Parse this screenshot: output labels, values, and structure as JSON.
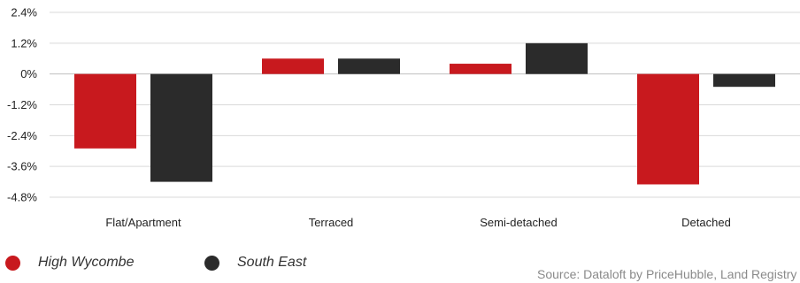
{
  "chart_data": {
    "type": "bar",
    "categories": [
      "Flat/Apartment",
      "Terraced",
      "Semi-detached",
      "Detached"
    ],
    "series": [
      {
        "name": "High Wycombe",
        "color": "#c8191e",
        "values": [
          -2.9,
          0.6,
          0.4,
          -4.3
        ]
      },
      {
        "name": "South East",
        "color": "#2b2b2b",
        "values": [
          -4.2,
          0.6,
          1.2,
          -0.5
        ]
      }
    ],
    "y_ticks": [
      "2.4%",
      "1.2%",
      "0%",
      "-1.2%",
      "-2.4%",
      "-3.6%",
      "-4.8%"
    ],
    "y_tick_values": [
      2.4,
      1.2,
      0,
      -1.2,
      -2.4,
      -3.6,
      -4.8
    ],
    "ylim": [
      -4.8,
      2.4
    ],
    "grid": true,
    "legend_position": "bottom-left"
  },
  "legend": {
    "items": [
      {
        "label": "High Wycombe",
        "color": "#c8191e"
      },
      {
        "label": "South East",
        "color": "#2b2b2b"
      }
    ]
  },
  "source": "Source: Dataloft by PriceHubble, Land Registry"
}
